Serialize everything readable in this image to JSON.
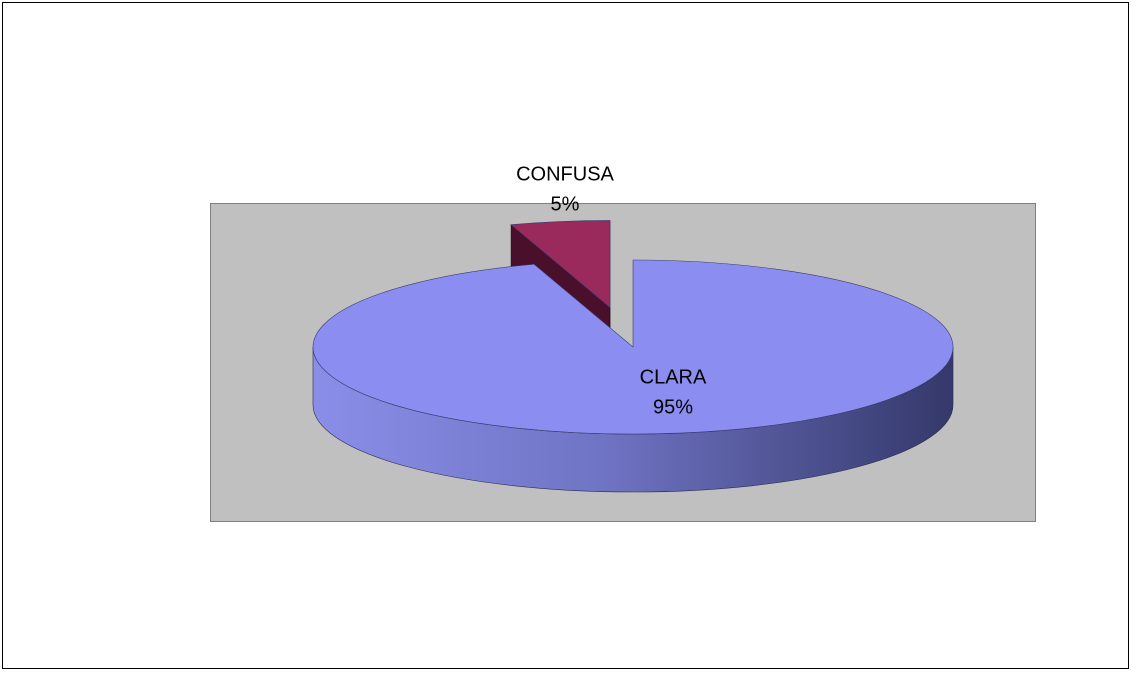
{
  "chart_data": {
    "type": "pie3d",
    "categories": [
      "CLARA",
      "CONFUSA"
    ],
    "values": [
      95,
      5
    ],
    "value_labels": [
      "95%",
      "5%"
    ],
    "colors": [
      "#8b8ef0",
      "#9a2a5c"
    ]
  }
}
